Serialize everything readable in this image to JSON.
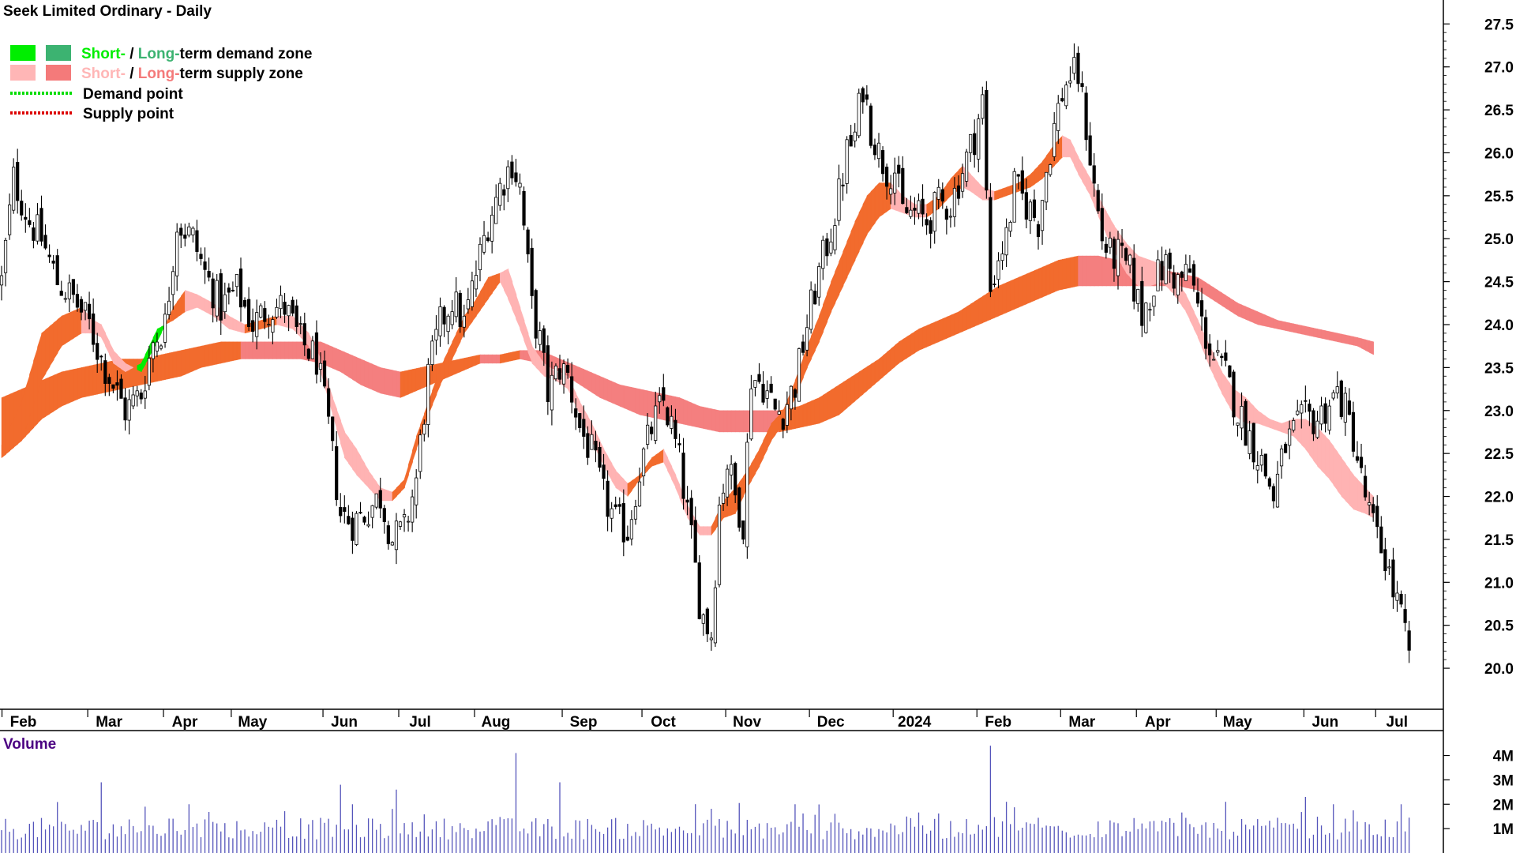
{
  "chart_data": {
    "type": "candlestick",
    "title": "Seek Limited Ordinary - Daily",
    "price_axis": {
      "ylim": [
        19.78,
        27.65
      ],
      "ticks": [
        20.0,
        20.5,
        21.0,
        21.5,
        22.0,
        22.5,
        23.0,
        23.5,
        24.0,
        24.5,
        25.0,
        25.5,
        26.0,
        26.5,
        27.0,
        27.5
      ],
      "tick_labels": [
        "20.0",
        "20.5",
        "21.0",
        "21.5",
        "22.0",
        "22.5",
        "23.0",
        "23.5",
        "24.0",
        "24.5",
        "25.0",
        "25.5",
        "26.0",
        "26.5",
        "27.0",
        "27.5"
      ]
    },
    "x_axis": {
      "tick_labels": [
        "Feb",
        "Mar",
        "Apr",
        "May",
        "Jun",
        "Jul",
        "Aug",
        "Sep",
        "Oct",
        "Nov",
        "Dec",
        "2024",
        "Feb",
        "Mar",
        "Apr",
        "May",
        "Jun",
        "Jul"
      ],
      "tick_positions": [
        0.5,
        22,
        41,
        58,
        81,
        100,
        119,
        141,
        161,
        182,
        203,
        224,
        245,
        266,
        285,
        305,
        327,
        345
      ]
    },
    "legend": {
      "placement": "top-left",
      "items": [
        {
          "label_short": "Short-",
          "sep": " / ",
          "label_long": "Long-",
          "rest": "term demand zone",
          "colors": [
            "#00ff00",
            "#3cb371"
          ]
        },
        {
          "label_short": "Short-",
          "sep": " / ",
          "label_long": "Long-",
          "rest": "term supply zone",
          "colors": [
            "#ffb6b6",
            "#f47a7a"
          ]
        },
        {
          "label": "Demand point",
          "color": "#00dd00",
          "style": "dotted"
        },
        {
          "label": "Supply point",
          "color": "#dd0000",
          "style": "dotted"
        }
      ]
    },
    "price_anchors": [
      [
        0,
        24.5
      ],
      [
        3,
        25.7
      ],
      [
        7,
        25.2
      ],
      [
        10,
        25.0
      ],
      [
        14,
        24.5
      ],
      [
        18,
        24.3
      ],
      [
        22,
        24.0
      ],
      [
        25,
        23.6
      ],
      [
        28,
        23.3
      ],
      [
        31,
        23.0
      ],
      [
        35,
        23.2
      ],
      [
        38,
        23.8
      ],
      [
        41,
        24.0
      ],
      [
        44,
        25.2
      ],
      [
        48,
        25.0
      ],
      [
        51,
        24.6
      ],
      [
        55,
        24.2
      ],
      [
        59,
        24.4
      ],
      [
        63,
        24.0
      ],
      [
        67,
        24.2
      ],
      [
        71,
        24.2
      ],
      [
        75,
        23.8
      ],
      [
        79,
        23.6
      ],
      [
        82,
        22.8
      ],
      [
        85,
        21.8
      ],
      [
        88,
        21.7
      ],
      [
        91,
        21.8
      ],
      [
        95,
        22.0
      ],
      [
        98,
        21.5
      ],
      [
        101,
        21.6
      ],
      [
        104,
        22.2
      ],
      [
        107,
        23.4
      ],
      [
        110,
        24.0
      ],
      [
        113,
        24.3
      ],
      [
        116,
        24.0
      ],
      [
        119,
        24.6
      ],
      [
        122,
        25.2
      ],
      [
        125,
        25.6
      ],
      [
        128,
        25.9
      ],
      [
        130,
        25.6
      ],
      [
        133,
        24.2
      ],
      [
        135,
        23.8
      ],
      [
        137,
        23.2
      ],
      [
        140,
        23.5
      ],
      [
        142,
        23.4
      ],
      [
        145,
        22.8
      ],
      [
        148,
        22.5
      ],
      [
        151,
        22.0
      ],
      [
        154,
        21.7
      ],
      [
        157,
        21.6
      ],
      [
        160,
        22.3
      ],
      [
        163,
        22.8
      ],
      [
        166,
        23.1
      ],
      [
        168,
        22.8
      ],
      [
        170,
        22.4
      ],
      [
        173,
        21.5
      ],
      [
        175,
        20.8
      ],
      [
        176,
        20.6
      ],
      [
        178,
        20.4
      ],
      [
        180,
        21.9
      ],
      [
        182,
        22.4
      ],
      [
        184,
        22.0
      ],
      [
        186,
        21.7
      ],
      [
        188,
        23.4
      ],
      [
        191,
        23.3
      ],
      [
        194,
        23.0
      ],
      [
        196,
        23.0
      ],
      [
        199,
        23.3
      ],
      [
        202,
        24.0
      ],
      [
        205,
        24.6
      ],
      [
        208,
        25.1
      ],
      [
        210,
        25.5
      ],
      [
        212,
        26.0
      ],
      [
        214,
        26.2
      ],
      [
        216,
        26.8
      ],
      [
        218,
        26.3
      ],
      [
        220,
        26.0
      ],
      [
        222,
        25.8
      ],
      [
        224,
        25.8
      ],
      [
        226,
        25.3
      ],
      [
        229,
        25.3
      ],
      [
        232,
        25.2
      ],
      [
        235,
        25.4
      ],
      [
        238,
        25.4
      ],
      [
        241,
        25.8
      ],
      [
        244,
        26.2
      ],
      [
        246,
        26.6
      ],
      [
        248,
        24.4
      ],
      [
        250,
        24.8
      ],
      [
        252,
        25.0
      ],
      [
        254,
        25.6
      ],
      [
        257,
        25.4
      ],
      [
        260,
        25.2
      ],
      [
        262,
        25.8
      ],
      [
        264,
        26.3
      ],
      [
        266,
        26.7
      ],
      [
        268,
        26.9
      ],
      [
        270,
        26.9
      ],
      [
        272,
        26.3
      ],
      [
        274,
        25.6
      ],
      [
        276,
        25.0
      ],
      [
        278,
        24.8
      ],
      [
        280,
        24.8
      ],
      [
        283,
        24.6
      ],
      [
        286,
        24.1
      ],
      [
        289,
        24.5
      ],
      [
        292,
        24.7
      ],
      [
        295,
        24.5
      ],
      [
        298,
        24.6
      ],
      [
        301,
        24.0
      ],
      [
        304,
        23.6
      ],
      [
        307,
        23.4
      ],
      [
        310,
        23.0
      ],
      [
        313,
        22.7
      ],
      [
        316,
        22.4
      ],
      [
        319,
        22.0
      ],
      [
        322,
        22.6
      ],
      [
        325,
        22.8
      ],
      [
        327,
        22.9
      ],
      [
        330,
        22.9
      ],
      [
        333,
        23.1
      ],
      [
        335,
        23.2
      ],
      [
        337,
        23.0
      ],
      [
        339,
        22.7
      ],
      [
        341,
        22.2
      ],
      [
        343,
        21.8
      ],
      [
        345,
        21.5
      ],
      [
        347,
        21.3
      ],
      [
        349,
        20.9
      ],
      [
        351,
        20.6
      ],
      [
        353,
        20.1
      ]
    ],
    "short_term_zone_anchors": [
      [
        0,
        22.6,
        22.45
      ],
      [
        5,
        23.1,
        22.65
      ],
      [
        10,
        23.9,
        23.35
      ],
      [
        15,
        24.1,
        23.75
      ],
      [
        20,
        24.2,
        23.9
      ],
      [
        23,
        24.05,
        23.9
      ],
      [
        25,
        24.0,
        23.85
      ],
      [
        28,
        23.7,
        23.55
      ],
      [
        31,
        23.55,
        23.45
      ],
      [
        35,
        23.45,
        23.55
      ],
      [
        39,
        23.8,
        23.95
      ],
      [
        43,
        24.2,
        24.05
      ],
      [
        46,
        24.4,
        24.15
      ],
      [
        49,
        24.35,
        24.2
      ],
      [
        53,
        24.25,
        24.1
      ],
      [
        57,
        24.1,
        23.95
      ],
      [
        61,
        24.0,
        23.9
      ],
      [
        65,
        24.05,
        23.95
      ],
      [
        69,
        24.1,
        24.0
      ],
      [
        73,
        24.1,
        23.95
      ],
      [
        77,
        23.9,
        23.75
      ],
      [
        80,
        23.6,
        23.45
      ],
      [
        83,
        23.15,
        22.95
      ],
      [
        86,
        22.75,
        22.45
      ],
      [
        89,
        22.55,
        22.25
      ],
      [
        92,
        22.3,
        22.1
      ],
      [
        95,
        22.1,
        21.95
      ],
      [
        98,
        22.05,
        21.95
      ],
      [
        101,
        22.2,
        22.1
      ],
      [
        104,
        22.7,
        22.55
      ],
      [
        107,
        23.1,
        22.95
      ],
      [
        110,
        23.5,
        23.3
      ],
      [
        113,
        23.8,
        23.6
      ],
      [
        116,
        24.1,
        23.9
      ],
      [
        119,
        24.3,
        24.1
      ],
      [
        122,
        24.55,
        24.3
      ],
      [
        125,
        24.6,
        24.5
      ],
      [
        127,
        24.65,
        24.3
      ],
      [
        130,
        24.2,
        23.95
      ],
      [
        133,
        23.75,
        23.55
      ],
      [
        136,
        23.55,
        23.4
      ],
      [
        139,
        23.45,
        23.35
      ],
      [
        142,
        23.4,
        23.25
      ],
      [
        145,
        23.1,
        22.95
      ],
      [
        148,
        22.85,
        22.65
      ],
      [
        151,
        22.55,
        22.35
      ],
      [
        154,
        22.3,
        22.1
      ],
      [
        157,
        22.15,
        22.0
      ],
      [
        160,
        22.25,
        22.2
      ],
      [
        163,
        22.45,
        22.35
      ],
      [
        166,
        22.55,
        22.4
      ],
      [
        169,
        22.25,
        22.1
      ],
      [
        172,
        21.9,
        21.75
      ],
      [
        175,
        21.65,
        21.55
      ],
      [
        178,
        21.65,
        21.55
      ],
      [
        181,
        21.95,
        21.75
      ],
      [
        184,
        22.1,
        21.8
      ],
      [
        187,
        22.3,
        22.1
      ],
      [
        190,
        22.55,
        22.35
      ],
      [
        193,
        22.85,
        22.65
      ],
      [
        196,
        23.0,
        22.85
      ],
      [
        199,
        23.35,
        23.15
      ],
      [
        202,
        23.75,
        23.5
      ],
      [
        205,
        24.1,
        23.8
      ],
      [
        208,
        24.5,
        24.15
      ],
      [
        211,
        24.85,
        24.45
      ],
      [
        214,
        25.2,
        24.75
      ],
      [
        217,
        25.5,
        25.05
      ],
      [
        220,
        25.65,
        25.25
      ],
      [
        223,
        25.65,
        25.35
      ],
      [
        226,
        25.5,
        25.3
      ],
      [
        229,
        25.4,
        25.25
      ],
      [
        232,
        25.4,
        25.25
      ],
      [
        235,
        25.5,
        25.35
      ],
      [
        238,
        25.7,
        25.5
      ],
      [
        241,
        25.85,
        25.6
      ],
      [
        243,
        25.75,
        25.55
      ],
      [
        246,
        25.6,
        25.45
      ],
      [
        249,
        25.55,
        25.45
      ],
      [
        252,
        25.6,
        25.5
      ],
      [
        255,
        25.65,
        25.55
      ],
      [
        258,
        25.75,
        25.6
      ],
      [
        261,
        25.9,
        25.7
      ],
      [
        264,
        26.1,
        25.85
      ],
      [
        266,
        26.2,
        25.95
      ],
      [
        268,
        26.15,
        25.95
      ],
      [
        270,
        25.95,
        25.75
      ],
      [
        273,
        25.7,
        25.5
      ],
      [
        276,
        25.4,
        25.15
      ],
      [
        279,
        25.15,
        24.85
      ],
      [
        282,
        24.95,
        24.6
      ],
      [
        285,
        24.8,
        24.45
      ],
      [
        288,
        24.75,
        24.45
      ],
      [
        291,
        24.7,
        24.5
      ],
      [
        294,
        24.55,
        24.35
      ],
      [
        297,
        24.35,
        24.15
      ],
      [
        300,
        24.05,
        23.85
      ],
      [
        303,
        23.75,
        23.5
      ],
      [
        306,
        23.45,
        23.2
      ],
      [
        309,
        23.25,
        22.95
      ],
      [
        312,
        23.15,
        22.85
      ],
      [
        315,
        23.0,
        22.85
      ],
      [
        318,
        22.9,
        22.8
      ],
      [
        321,
        22.85,
        22.75
      ],
      [
        324,
        22.9,
        22.7
      ],
      [
        327,
        22.9,
        22.55
      ],
      [
        330,
        22.8,
        22.35
      ],
      [
        333,
        22.65,
        22.2
      ],
      [
        336,
        22.45,
        22.0
      ],
      [
        339,
        22.25,
        21.85
      ],
      [
        342,
        22.1,
        21.8
      ],
      [
        344,
        22.0,
        21.75
      ]
    ],
    "long_term_zone_anchors": [
      [
        0,
        23.15,
        22.45
      ],
      [
        5,
        23.25,
        22.65
      ],
      [
        10,
        23.35,
        22.9
      ],
      [
        15,
        23.45,
        23.05
      ],
      [
        20,
        23.5,
        23.15
      ],
      [
        25,
        23.55,
        23.2
      ],
      [
        30,
        23.6,
        23.25
      ],
      [
        35,
        23.6,
        23.3
      ],
      [
        40,
        23.65,
        23.35
      ],
      [
        45,
        23.7,
        23.4
      ],
      [
        50,
        23.75,
        23.5
      ],
      [
        55,
        23.8,
        23.55
      ],
      [
        60,
        23.8,
        23.6
      ],
      [
        65,
        23.8,
        23.6
      ],
      [
        70,
        23.8,
        23.6
      ],
      [
        75,
        23.8,
        23.6
      ],
      [
        80,
        23.8,
        23.55
      ],
      [
        85,
        23.7,
        23.45
      ],
      [
        90,
        23.6,
        23.3
      ],
      [
        95,
        23.5,
        23.2
      ],
      [
        100,
        23.45,
        23.15
      ],
      [
        105,
        23.5,
        23.25
      ],
      [
        110,
        23.55,
        23.35
      ],
      [
        115,
        23.6,
        23.45
      ],
      [
        120,
        23.65,
        23.55
      ],
      [
        125,
        23.65,
        23.55
      ],
      [
        130,
        23.7,
        23.6
      ],
      [
        135,
        23.7,
        23.55
      ],
      [
        140,
        23.6,
        23.45
      ],
      [
        145,
        23.5,
        23.3
      ],
      [
        150,
        23.4,
        23.15
      ],
      [
        155,
        23.3,
        23.05
      ],
      [
        160,
        23.25,
        22.95
      ],
      [
        165,
        23.2,
        22.9
      ],
      [
        170,
        23.15,
        22.85
      ],
      [
        175,
        23.05,
        22.8
      ],
      [
        180,
        23.0,
        22.75
      ],
      [
        185,
        23.0,
        22.75
      ],
      [
        190,
        23.0,
        22.75
      ],
      [
        195,
        23.0,
        22.75
      ],
      [
        200,
        23.05,
        22.8
      ],
      [
        205,
        23.15,
        22.85
      ],
      [
        210,
        23.3,
        22.95
      ],
      [
        215,
        23.45,
        23.15
      ],
      [
        220,
        23.6,
        23.35
      ],
      [
        225,
        23.8,
        23.55
      ],
      [
        230,
        23.95,
        23.7
      ],
      [
        235,
        24.05,
        23.8
      ],
      [
        240,
        24.15,
        23.9
      ],
      [
        245,
        24.3,
        24.0
      ],
      [
        250,
        24.45,
        24.1
      ],
      [
        255,
        24.55,
        24.2
      ],
      [
        260,
        24.65,
        24.3
      ],
      [
        265,
        24.75,
        24.4
      ],
      [
        270,
        24.8,
        24.45
      ],
      [
        275,
        24.8,
        24.45
      ],
      [
        280,
        24.75,
        24.45
      ],
      [
        285,
        24.7,
        24.45
      ],
      [
        290,
        24.65,
        24.45
      ],
      [
        295,
        24.6,
        24.45
      ],
      [
        300,
        24.55,
        24.4
      ],
      [
        305,
        24.4,
        24.25
      ],
      [
        310,
        24.25,
        24.1
      ],
      [
        315,
        24.15,
        24.0
      ],
      [
        320,
        24.05,
        23.95
      ],
      [
        325,
        24.0,
        23.9
      ],
      [
        330,
        23.95,
        23.85
      ],
      [
        335,
        23.9,
        23.8
      ],
      [
        340,
        23.85,
        23.75
      ],
      [
        344,
        23.8,
        23.65
      ]
    ],
    "volume_axis": {
      "label": "Volume",
      "ticks": [
        1,
        2,
        3,
        4
      ],
      "tick_labels": [
        "1M",
        "2M",
        "3M",
        "4M"
      ],
      "ylim": [
        0,
        4.6
      ]
    },
    "volume_spikes": [
      [
        25,
        2.9
      ],
      [
        36,
        1.9
      ],
      [
        47,
        2.0
      ],
      [
        85,
        2.8
      ],
      [
        88,
        2.0
      ],
      [
        99,
        2.6
      ],
      [
        129,
        4.1
      ],
      [
        140,
        2.9
      ],
      [
        199,
        2.0
      ],
      [
        248,
        4.4
      ],
      [
        252,
        2.1
      ],
      [
        307,
        2.1
      ],
      [
        327,
        2.3
      ],
      [
        334,
        2.0
      ],
      [
        351,
        2.0
      ]
    ],
    "colors": {
      "candle_up": "#ffffff",
      "candle_down": "#000000",
      "volume": "#5555bb",
      "demand_short": "#00ee00",
      "demand_long": "#3cb371",
      "supply_short": "#ffb3b3",
      "supply_long": "#f47f7f",
      "zone_mixed": "#f26b2d"
    }
  }
}
